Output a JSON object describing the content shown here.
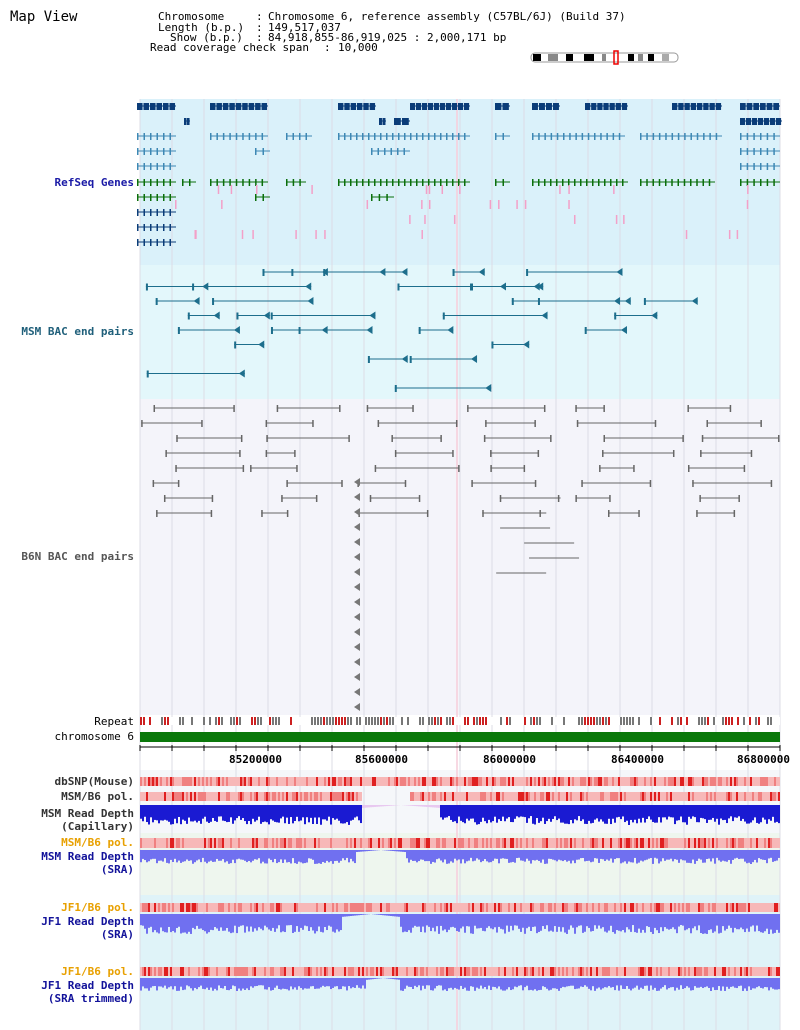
{
  "view_title": "Map View",
  "info": {
    "chromosome_label": "Chromosome",
    "chromosome_value": "Chromosome 6, reference assembly (C57BL/6J) (Build 37)",
    "length_label": "Length (b.p.)",
    "length_value": "149,517,037",
    "show_label": "Show (b.p.)",
    "show_value": "84,918,855-86,919,025 : 2,000,171 bp",
    "span_label": "Read coverage check span",
    "span_value": "10,000"
  },
  "tracks": {
    "refseq": "RefSeq Genes",
    "msm_bac": "MSM BAC end pairs",
    "b6n_bac": "B6N BAC end pairs",
    "repeat": "Repeat",
    "chromosome": "chromosome 6",
    "dbsnp": "dbSNP(Mouse)",
    "msm_b6_pol_1": "MSM/B6 pol.",
    "msm_depth_cap_1": "MSM Read Depth",
    "msm_depth_cap_2": "(Capillary)",
    "msm_b6_pol_2": "MSM/B6 pol.",
    "msm_depth_sra_1": "MSM Read Depth",
    "msm_depth_sra_2": "(SRA)",
    "jf1_b6_pol_1": "JF1/B6 pol.",
    "jf1_depth_sra_1": "JF1 Read Depth",
    "jf1_depth_sra_2": "(SRA)",
    "jf1_b6_pol_2": "JF1/B6 pol.",
    "jf1_depth_trim_1": "JF1 Read Depth",
    "jf1_depth_trim_2": "(SRA trimmed)"
  },
  "ruler": {
    "ticks": [
      "85200000",
      "85600000",
      "86000000",
      "86400000",
      "86800000"
    ]
  },
  "colors": {
    "refseq_bg": "#daf1fa",
    "bac_bg": "#e3f7fb",
    "gene_navy": "#0a3c78",
    "gene_mid": "#3d88b4",
    "gene_green": "#0a6e0a",
    "msm_line": "#1d6e8c",
    "b6n_line": "#666666",
    "chrom_bar": "#0a780a",
    "depth_blue": "#1a1ad2",
    "depth_light": "#7070f0",
    "pol_red": "#e03030"
  }
}
